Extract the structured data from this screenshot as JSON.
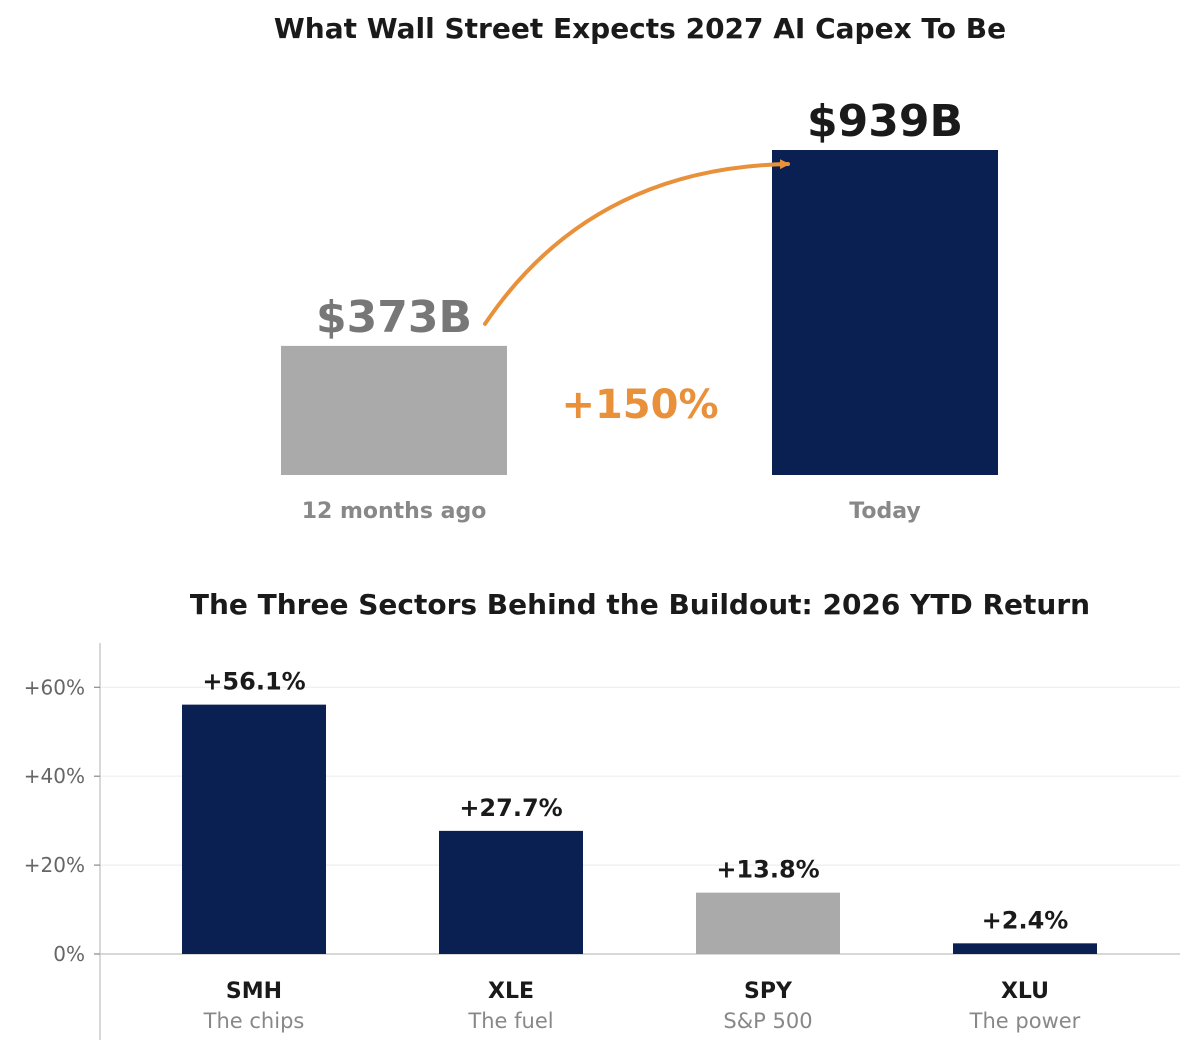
{
  "chart_data": [
    {
      "type": "bar",
      "title": "What Wall Street Expects 2027 AI Capex To Be",
      "categories": [
        "12 months ago",
        "Today"
      ],
      "values": [
        373,
        939
      ],
      "value_labels": [
        "$373B",
        "$939B"
      ],
      "unit": "$B",
      "annotation": "+150%",
      "colors": [
        "#aaaaaa",
        "#0a1f52"
      ],
      "value_label_colors": [
        "#777777",
        "#1a1a1a"
      ],
      "arrow_color": "#e8913a",
      "grid": false,
      "ylim": [
        0,
        939
      ]
    },
    {
      "type": "bar",
      "title": "The Three Sectors Behind the Buildout: 2026 YTD Return",
      "categories": [
        "SMH",
        "XLE",
        "SPY",
        "XLU"
      ],
      "descriptions": [
        "The chips",
        "The fuel",
        "S&P 500",
        "The power"
      ],
      "values": [
        56.1,
        27.7,
        13.8,
        2.4
      ],
      "value_labels": [
        "+56.1%",
        "+27.7%",
        "+13.8%",
        "+2.4%"
      ],
      "colors": [
        "#0a1f52",
        "#0a1f52",
        "#aaaaaa",
        "#0a1f52"
      ],
      "yticks": [
        0,
        20,
        40,
        60
      ],
      "ytick_labels": [
        "0%",
        "+20%",
        "+40%",
        "+60%"
      ],
      "ylim": [
        -19,
        70
      ],
      "grid": true
    }
  ]
}
